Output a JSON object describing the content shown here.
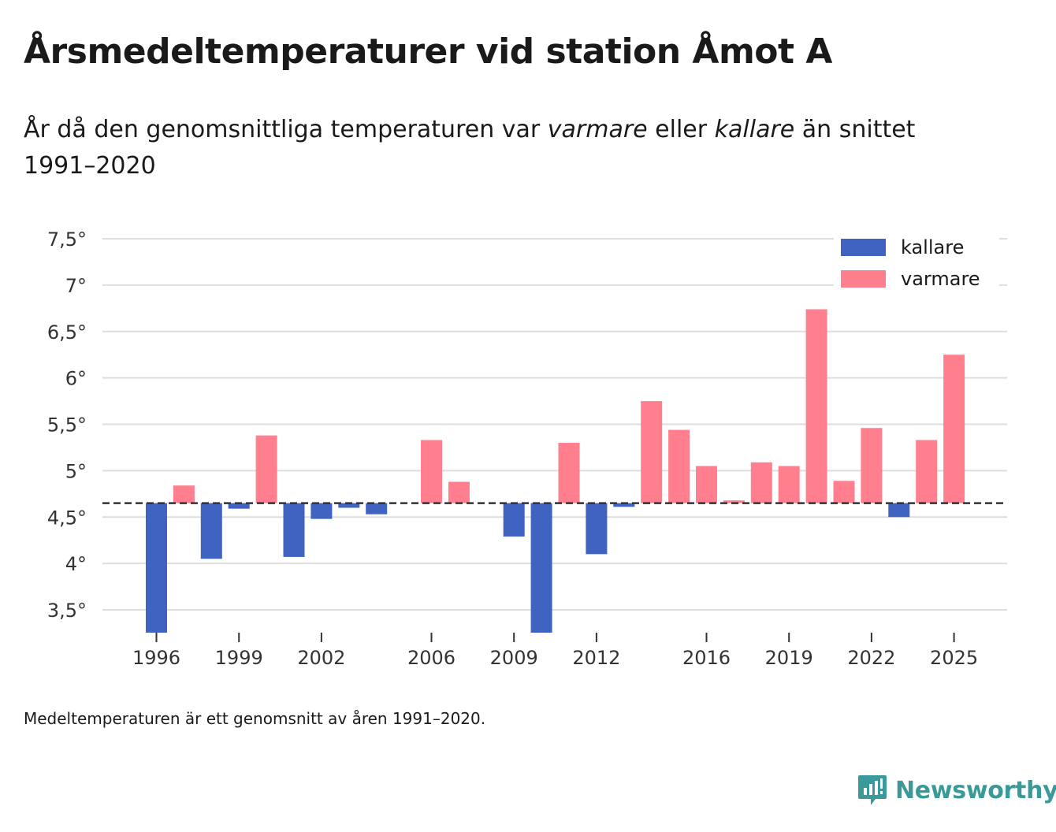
{
  "header": {
    "title": "Årsmedeltemperaturer vid station Åmot A",
    "subtitle_part1": "År då den genomsnittliga temperaturen var ",
    "subtitle_em1": "varmare",
    "subtitle_part2": " eller ",
    "subtitle_em2": "kallare",
    "subtitle_part3": " än snittet 1991–2020"
  },
  "note": "Medeltemperaturen är ett genomsnitt av åren 1991–2020.",
  "brand": {
    "name": "Newsworthy",
    "icon": "newsworthy-logo-icon"
  },
  "colors": {
    "colder": "#4063c1",
    "warmer": "#ff7f8e",
    "grid": "#dddddd",
    "baseline": "#333333"
  },
  "chart_data": {
    "type": "bar",
    "title": "Årsmedeltemperaturer vid station Åmot A",
    "xlabel": "",
    "ylabel": "",
    "baseline": 4.65,
    "ylim": [
      3.25,
      7.6
    ],
    "yticks": [
      3.5,
      4,
      4.5,
      5,
      5.5,
      6,
      6.5,
      7,
      7.5
    ],
    "ytick_labels": [
      "3,5°",
      "4°",
      "4,5°",
      "5°",
      "5,5°",
      "6°",
      "6,5°",
      "7°",
      "7,5°"
    ],
    "xticks": [
      1996,
      1999,
      2002,
      2006,
      2009,
      2012,
      2016,
      2019,
      2022,
      2025
    ],
    "xtick_labels": [
      "1996",
      "1999",
      "2002",
      "2006",
      "2009",
      "2012",
      "2016",
      "2019",
      "2022",
      "2025"
    ],
    "legend": {
      "position": "top-right",
      "entries": [
        "kallare",
        "varmare"
      ]
    },
    "series": [
      {
        "name": "kallare",
        "points": [
          {
            "year": 1996,
            "value": 3.25
          },
          {
            "year": 1998,
            "value": 4.05
          },
          {
            "year": 1999,
            "value": 4.59
          },
          {
            "year": 2001,
            "value": 4.07
          },
          {
            "year": 2002,
            "value": 4.48
          },
          {
            "year": 2003,
            "value": 4.6
          },
          {
            "year": 2004,
            "value": 4.53
          },
          {
            "year": 2009,
            "value": 4.29
          },
          {
            "year": 2010,
            "value": 3.25
          },
          {
            "year": 2012,
            "value": 4.1
          },
          {
            "year": 2013,
            "value": 4.61
          },
          {
            "year": 2023,
            "value": 4.5
          }
        ]
      },
      {
        "name": "varmare",
        "points": [
          {
            "year": 1997,
            "value": 4.84
          },
          {
            "year": 2000,
            "value": 5.38
          },
          {
            "year": 2006,
            "value": 5.33
          },
          {
            "year": 2007,
            "value": 4.88
          },
          {
            "year": 2011,
            "value": 5.3
          },
          {
            "year": 2014,
            "value": 5.75
          },
          {
            "year": 2015,
            "value": 5.44
          },
          {
            "year": 2016,
            "value": 5.05
          },
          {
            "year": 2017,
            "value": 4.68
          },
          {
            "year": 2018,
            "value": 5.09
          },
          {
            "year": 2019,
            "value": 5.05
          },
          {
            "year": 2020,
            "value": 6.74
          },
          {
            "year": 2021,
            "value": 4.89
          },
          {
            "year": 2022,
            "value": 5.46
          },
          {
            "year": 2024,
            "value": 5.33
          },
          {
            "year": 2025,
            "value": 6.25
          }
        ]
      }
    ]
  }
}
